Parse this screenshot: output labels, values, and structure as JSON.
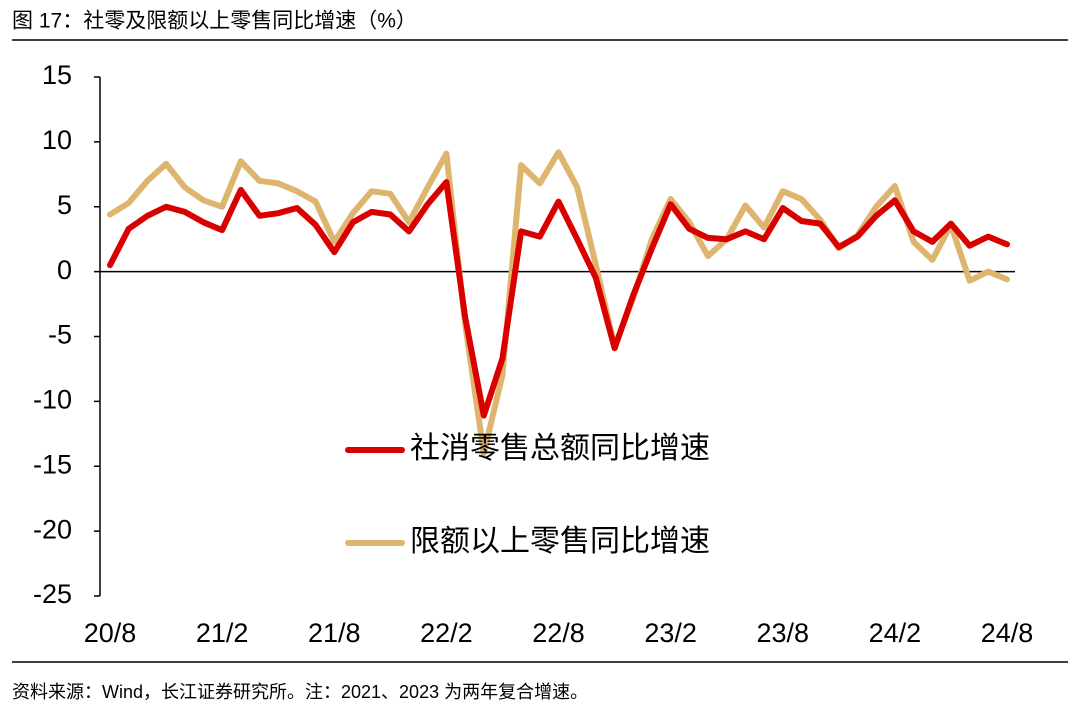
{
  "chart_data": {
    "type": "line",
    "title": "图 17：社零及限额以上零售同比增速（%）",
    "source": "资料来源：Wind，长江证券研究所。注：2021、2023 为两年复合增速。",
    "categories": [
      "20/8",
      null,
      null,
      null,
      null,
      null,
      "21/2",
      null,
      null,
      null,
      null,
      null,
      "21/8",
      null,
      null,
      null,
      null,
      null,
      "22/2",
      null,
      null,
      null,
      null,
      null,
      "22/8",
      null,
      null,
      null,
      null,
      null,
      "23/2",
      null,
      null,
      null,
      null,
      null,
      "23/8",
      null,
      null,
      null,
      null,
      null,
      "24/2",
      null,
      null,
      null,
      null,
      null,
      "24/8"
    ],
    "series": [
      {
        "name": "社消零售总额同比增速",
        "color": "#d90000",
        "values": [
          0.5,
          3.3,
          4.3,
          5.0,
          4.6,
          3.8,
          3.2,
          6.3,
          4.3,
          4.5,
          4.9,
          3.6,
          1.5,
          3.8,
          4.6,
          4.4,
          3.1,
          5.2,
          6.9,
          -3.5,
          -11.1,
          -6.7,
          3.1,
          2.7,
          5.4,
          2.5,
          -0.5,
          -5.9,
          -1.8,
          1.8,
          5.2,
          3.3,
          2.6,
          2.5,
          3.1,
          2.5,
          4.9,
          3.9,
          3.7,
          1.9,
          2.7,
          4.3,
          5.5,
          3.1,
          2.3,
          3.7,
          2.0,
          2.7,
          2.1
        ]
      },
      {
        "name": "限额以上零售同比增速",
        "color": "#ddb56e",
        "values": [
          4.4,
          5.3,
          7.0,
          8.3,
          6.5,
          5.5,
          5.0,
          8.5,
          7.0,
          6.8,
          6.2,
          5.4,
          2.3,
          4.5,
          6.2,
          6.0,
          3.8,
          6.5,
          9.1,
          -4.0,
          -14.0,
          -8.0,
          8.2,
          6.8,
          9.2,
          6.5,
          0.5,
          -5.8,
          -2.0,
          2.5,
          5.6,
          3.8,
          1.2,
          2.5,
          5.1,
          3.4,
          6.2,
          5.6,
          4.0,
          1.8,
          2.8,
          5.0,
          6.6,
          2.3,
          0.9,
          3.6,
          -0.7,
          0.0,
          -0.6
        ]
      }
    ],
    "ylim": [
      -25,
      15
    ],
    "yticks": [
      -25,
      -20,
      -15,
      -10,
      -5,
      0,
      5,
      10,
      15
    ],
    "legend": "center",
    "grid": false
  }
}
